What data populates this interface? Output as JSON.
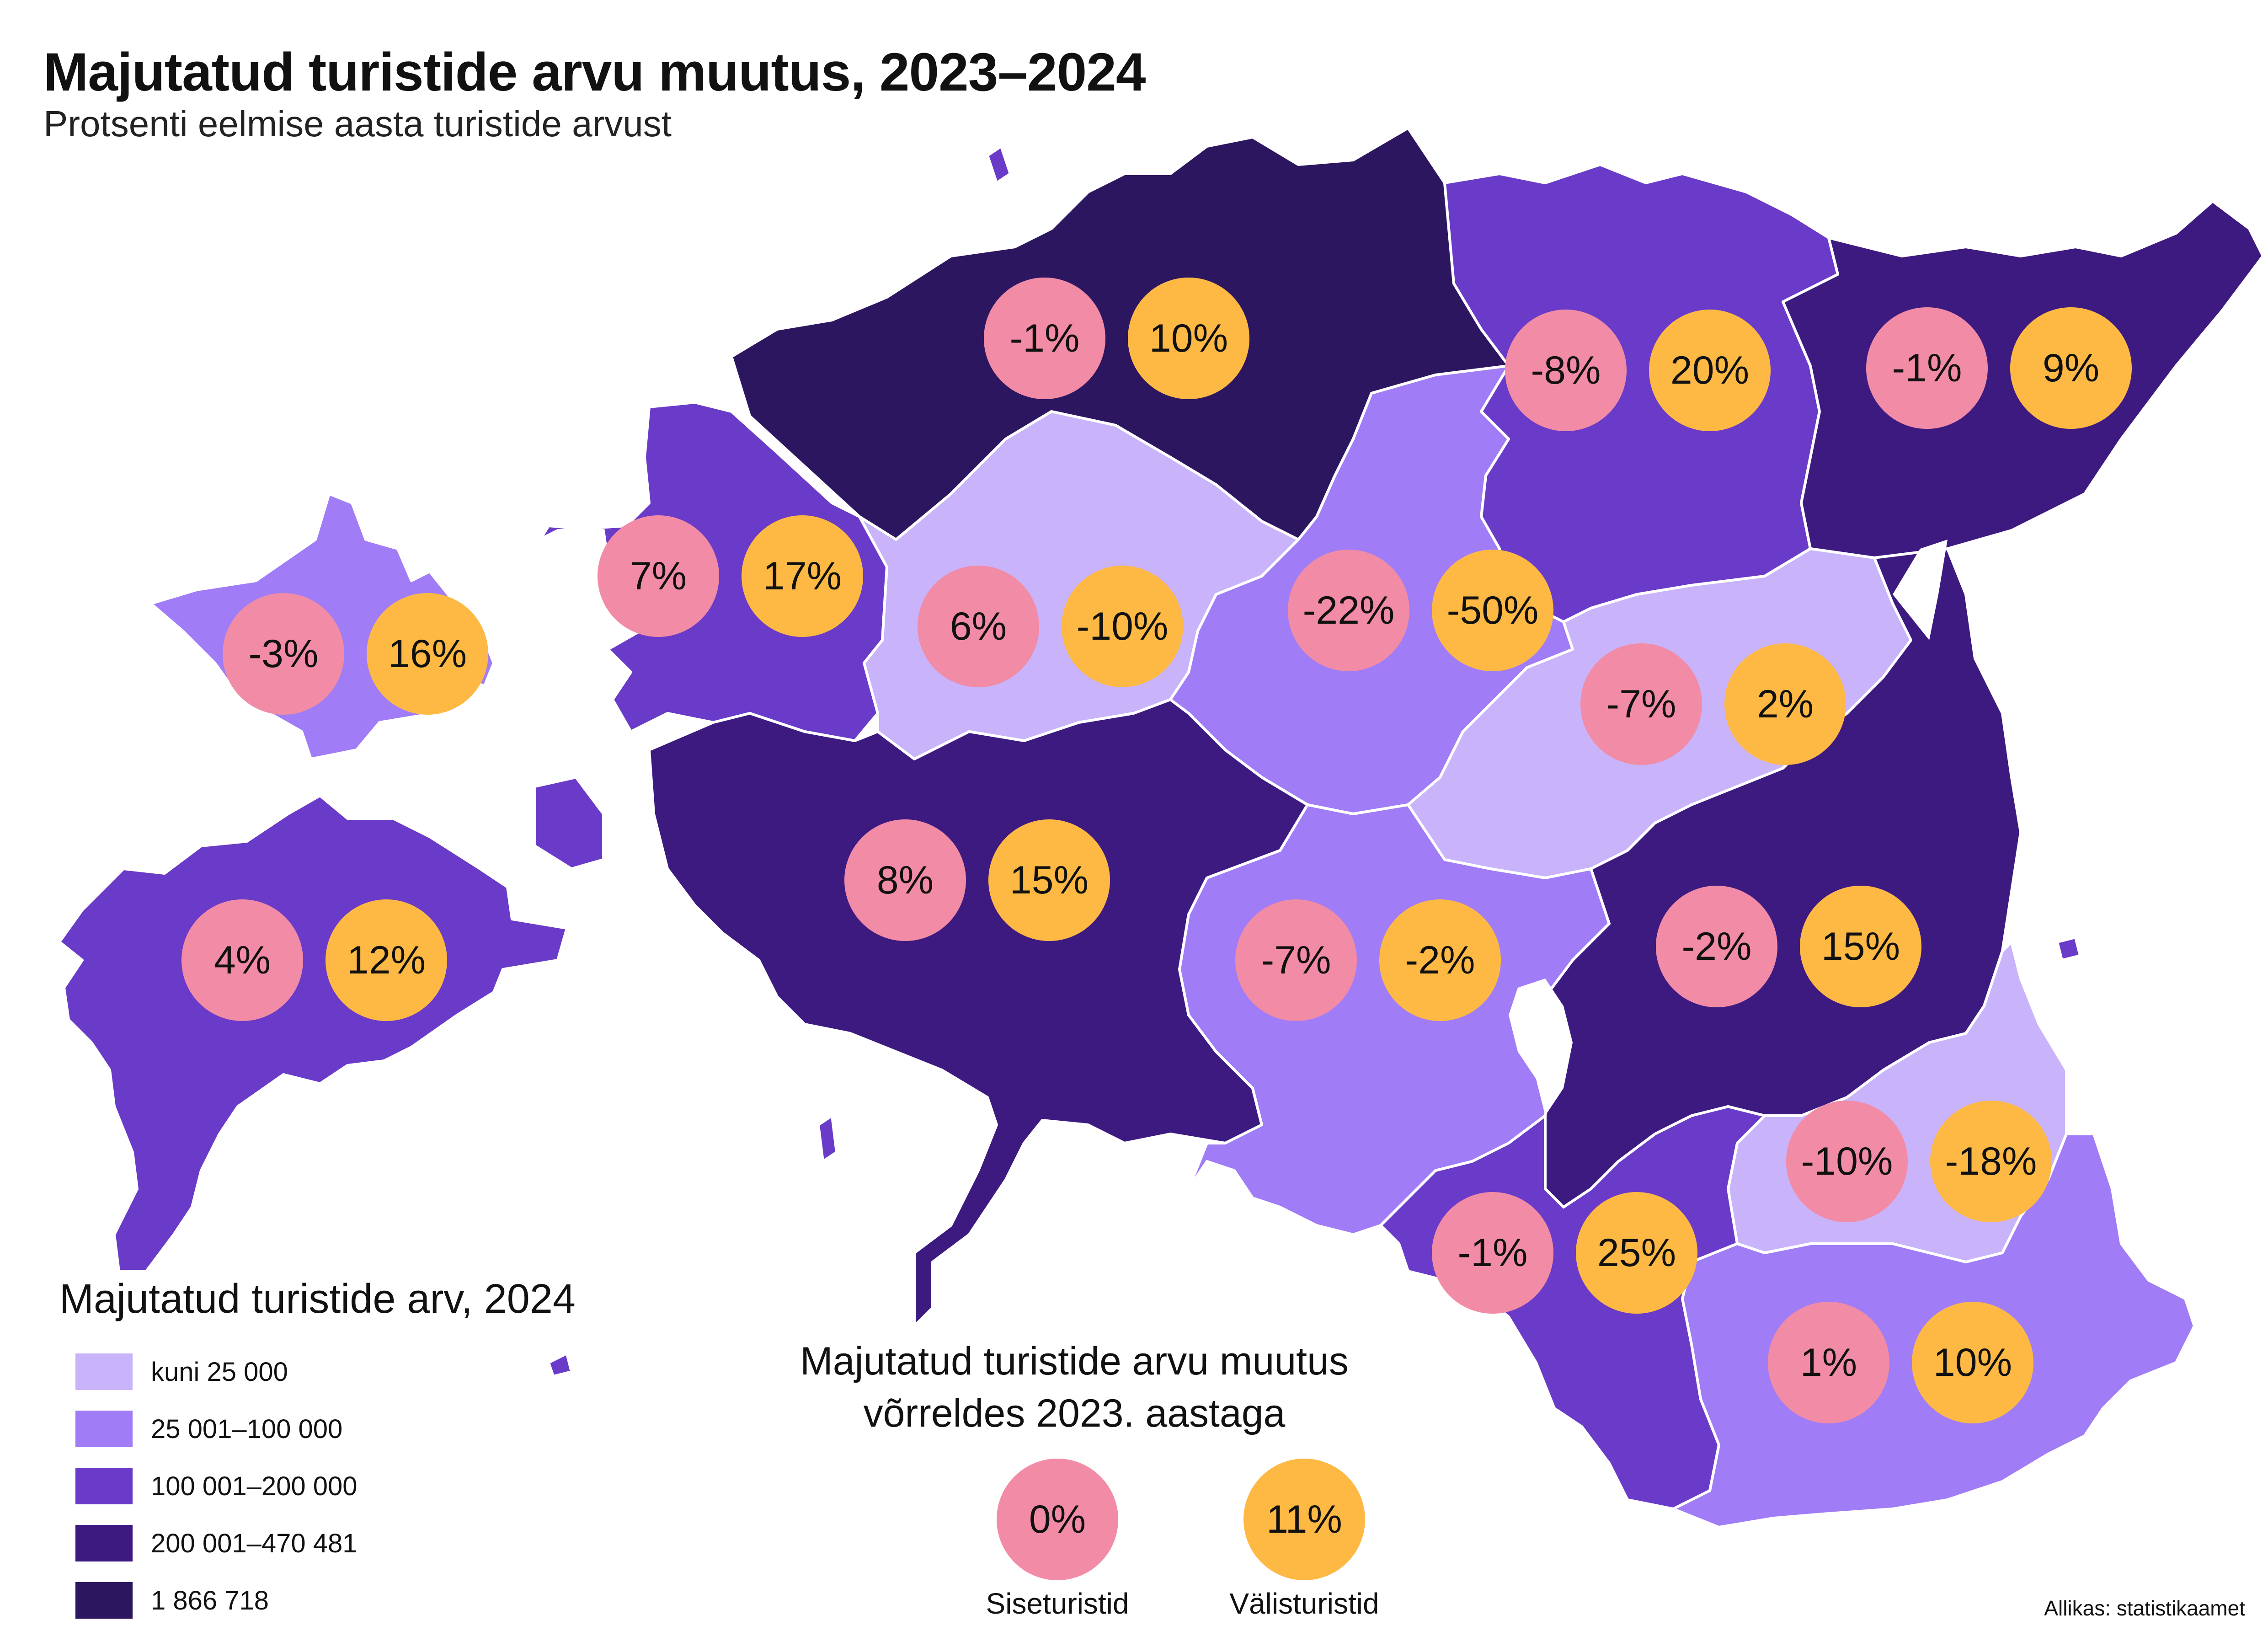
{
  "title": "Majutatud turistide arvu muutus, 2023–2024",
  "subtitle": "Protsenti eelmise aasta turistide arvust",
  "colors": {
    "tier1": "#c9b3fb",
    "tier2": "#a07cf6",
    "tier3": "#6a3ac8",
    "tier4": "#3d1a80",
    "tier5": "#2d1660",
    "domestic": "#f28ba6",
    "foreign": "#fdb944",
    "water": "#ffffff"
  },
  "regions": [
    {
      "tier": 2,
      "domestic": "-3%",
      "foreign": "16%"
    },
    {
      "tier": 3,
      "domestic": "4%",
      "foreign": "12%"
    },
    {
      "tier": 3,
      "domestic": "7%",
      "foreign": "17%"
    },
    {
      "tier": 5,
      "domestic": "-1%",
      "foreign": "10%"
    },
    {
      "tier": 3,
      "domestic": "-8%",
      "foreign": "20%"
    },
    {
      "tier": 4,
      "domestic": "-1%",
      "foreign": "9%"
    },
    {
      "tier": 1,
      "domestic": "6%",
      "foreign": "-10%"
    },
    {
      "tier": 2,
      "domestic": "-22%",
      "foreign": "-50%"
    },
    {
      "tier": 1,
      "domestic": "-7%",
      "foreign": "2%"
    },
    {
      "tier": 4,
      "domestic": "8%",
      "foreign": "15%"
    },
    {
      "tier": 2,
      "domestic": "-7%",
      "foreign": "-2%"
    },
    {
      "tier": 4,
      "domestic": "-2%",
      "foreign": "15%"
    },
    {
      "tier": 1,
      "domestic": "-10%",
      "foreign": "-18%"
    },
    {
      "tier": 3,
      "domestic": "-1%",
      "foreign": "25%"
    },
    {
      "tier": 2,
      "domestic": "1%",
      "foreign": "10%"
    }
  ],
  "legend": {
    "title": "Majutatud turistide arv, 2024",
    "items": [
      {
        "label": "kuni 25 000",
        "tier": 1
      },
      {
        "label": "25 001–100 000",
        "tier": 2
      },
      {
        "label": "100 001–200 000",
        "tier": 3
      },
      {
        "label": "200 001–470 481",
        "tier": 4
      },
      {
        "label": "1 866 718",
        "tier": 5
      }
    ]
  },
  "change_key": {
    "title_line1": "Majutatud turistide arvu muutus",
    "title_line2": "võrreldes 2023. aastaga",
    "domestic_value": "0%",
    "domestic_label": "Siseturistid",
    "foreign_value": "11%",
    "foreign_label": "Välisturistid"
  },
  "source": "Allikas: statistikaamet"
}
